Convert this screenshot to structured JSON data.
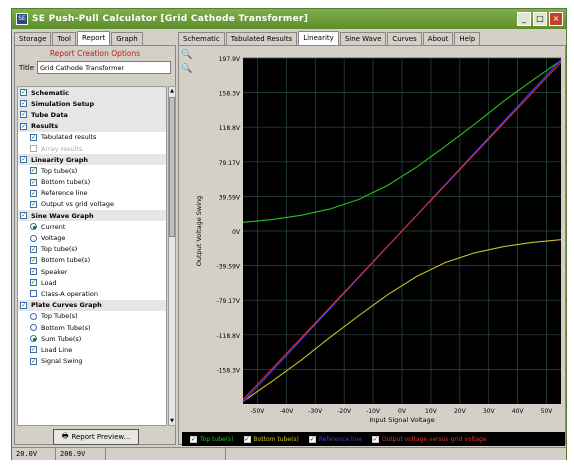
{
  "window": {
    "title": "SE Push-Pull Calculator [Grid Cathode Transformer]",
    "icon_label": "SE"
  },
  "left_tabs": [
    "Storage",
    "Tool",
    "Report",
    "Graph"
  ],
  "report": {
    "heading": "Report Creation Options",
    "title_label": "Title",
    "title_value": "Grid Cathode Transformer",
    "options": [
      {
        "type": "group",
        "label": "Schematic",
        "checked": true
      },
      {
        "type": "group",
        "label": "Simulation Setup",
        "checked": true
      },
      {
        "type": "group",
        "label": "Tube Data",
        "checked": true
      },
      {
        "type": "group",
        "label": "Results",
        "checked": true
      },
      {
        "type": "check",
        "label": "Tabulated results",
        "checked": true
      },
      {
        "type": "check",
        "label": "Array results",
        "checked": false,
        "disabled": true
      },
      {
        "type": "group",
        "label": "Linearity Graph",
        "checked": true
      },
      {
        "type": "check",
        "label": "Top tube(s)",
        "checked": true
      },
      {
        "type": "check",
        "label": "Bottom tube(s)",
        "checked": true
      },
      {
        "type": "check",
        "label": "Reference line",
        "checked": true
      },
      {
        "type": "check",
        "label": "Output vs grid voltage",
        "checked": true
      },
      {
        "type": "group",
        "label": "Sine Wave Graph",
        "checked": true
      },
      {
        "type": "radio",
        "label": "Current",
        "checked": true
      },
      {
        "type": "radio",
        "label": "Voltage",
        "checked": false
      },
      {
        "type": "check",
        "label": "Top tube(s)",
        "checked": true
      },
      {
        "type": "check",
        "label": "Bottom tube(s)",
        "checked": true
      },
      {
        "type": "check",
        "label": "Speaker",
        "checked": true
      },
      {
        "type": "check",
        "label": "Load",
        "checked": true
      },
      {
        "type": "check",
        "label": "Class-A operation",
        "checked": false
      },
      {
        "type": "group",
        "label": "Plate Curves Graph",
        "checked": true
      },
      {
        "type": "radio",
        "label": "Top Tube(s)",
        "checked": false
      },
      {
        "type": "radio",
        "label": "Bottom Tube(s)",
        "checked": false
      },
      {
        "type": "radio",
        "label": "Sum Tube(s)",
        "checked": true
      },
      {
        "type": "check",
        "label": "Load Line",
        "checked": true
      },
      {
        "type": "check",
        "label": "Signal Swing",
        "checked": true
      }
    ],
    "preview_button": "Report Preview..."
  },
  "right_tabs": [
    "Schematic",
    "Tabulated Results",
    "Linearity",
    "Sine Wave",
    "Curves",
    "About",
    "Help"
  ],
  "active_right_tab": "Linearity",
  "chart_data": {
    "type": "line",
    "title": "",
    "xlabel": "Input Signal Voltage",
    "ylabel": "Output Voltage Swing",
    "x_ticks": [
      "-50V",
      "-40V",
      "-30V",
      "-20V",
      "-10V",
      "0V",
      "10V",
      "20V",
      "30V",
      "40V",
      "50V"
    ],
    "y_ticks": [
      "197.9V",
      "158.3V",
      "118.8V",
      "79.17V",
      "39.59V",
      "0V",
      "-39.59V",
      "-79.17V",
      "-118.8V",
      "-158.3V"
    ],
    "xlim": [
      -55,
      55
    ],
    "ylim": [
      -197.9,
      197.9
    ],
    "grid": true,
    "background": "#000000",
    "series": [
      {
        "name": "Top tube(s)",
        "color": "#22c322",
        "x": [
          -55,
          -45,
          -35,
          -25,
          -15,
          -5,
          5,
          15,
          25,
          35,
          45,
          55
        ],
        "y": [
          10,
          13,
          18,
          25,
          36,
          52,
          73,
          97,
          122,
          148,
          172,
          195
        ]
      },
      {
        "name": "Bottom tube(s)",
        "color": "#c8c020",
        "x": [
          -55,
          -45,
          -35,
          -25,
          -15,
          -5,
          5,
          15,
          25,
          35,
          45,
          55
        ],
        "y": [
          -195,
          -172,
          -148,
          -122,
          -97,
          -73,
          -52,
          -36,
          -25,
          -18,
          -13,
          -10
        ]
      },
      {
        "name": "Reference line",
        "color": "#3a3aff",
        "x": [
          -55,
          55
        ],
        "y": [
          -196,
          196
        ]
      },
      {
        "name": "Output voltage versus grid voltage",
        "color": "#e03030",
        "x": [
          -55,
          55
        ],
        "y": [
          -193,
          193
        ]
      }
    ],
    "legend_position": "bottom"
  },
  "status": [
    "20.0V",
    "206.9V"
  ]
}
